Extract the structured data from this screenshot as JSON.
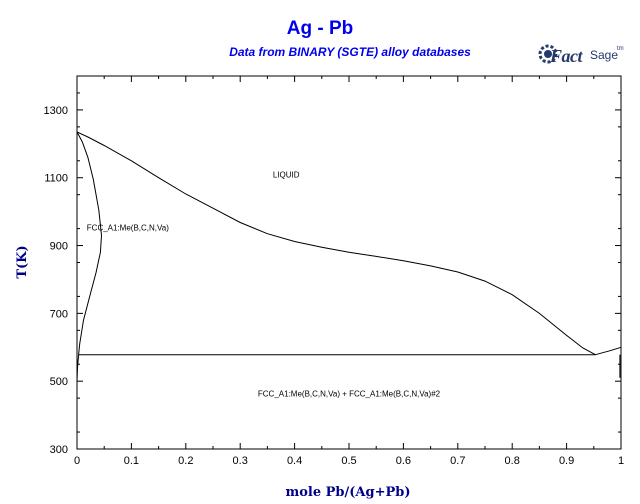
{
  "chart_data": {
    "type": "line",
    "title": "Ag - Pb",
    "subtitle": "Data from BINARY (SGTE) alloy databases",
    "xlabel": "mole Pb/(Ag+Pb)",
    "ylabel": "T(K)",
    "xlim": [
      0,
      1
    ],
    "ylim": [
      300,
      1400
    ],
    "xticks": [
      "0",
      "0.1",
      "0.2",
      "0.3",
      "0.4",
      "0.5",
      "0.6",
      "0.7",
      "0.8",
      "0.9",
      "1"
    ],
    "yticks": [
      "300",
      "500",
      "700",
      "900",
      "1100",
      "1300"
    ],
    "grid": false,
    "series": [
      {
        "x": [
          0.0,
          0.02,
          0.05,
          0.1,
          0.15,
          0.2,
          0.25,
          0.3,
          0.35,
          0.4,
          0.45,
          0.5,
          0.55,
          0.6,
          0.65,
          0.7,
          0.75,
          0.8,
          0.85,
          0.9,
          0.93,
          0.953
        ],
        "y": [
          1235,
          1220,
          1195,
          1150,
          1100,
          1052,
          1010,
          968,
          935,
          912,
          895,
          880,
          868,
          855,
          840,
          822,
          795,
          755,
          700,
          635,
          598,
          578
        ]
      },
      {
        "x": [
          0.0,
          0.01,
          0.02,
          0.03,
          0.04,
          0.045,
          0.043,
          0.035,
          0.025,
          0.012,
          0.005,
          0.003
        ],
        "y": [
          1235,
          1205,
          1160,
          1095,
          1005,
          930,
          880,
          820,
          760,
          680,
          610,
          578
        ]
      },
      {
        "x": [
          0.003,
          0.001,
          0.0
        ],
        "y": [
          578,
          540,
          500
        ]
      },
      {
        "x": [
          0.003,
          0.953
        ],
        "y": [
          578,
          578
        ]
      },
      {
        "x": [
          0.953,
          0.98,
          1.0
        ],
        "y": [
          578,
          590,
          600
        ]
      },
      {
        "x": [
          0.998,
          0.998
        ],
        "y": [
          578,
          510
        ]
      }
    ],
    "annotations": [
      {
        "text": "LIQUID",
        "x": 0.36,
        "y": 1100
      },
      {
        "text": "FCC_A1:Me(B,C,N,Va)",
        "x": 0.018,
        "y": 945
      },
      {
        "text": "FCC_A1:Me(B,C,N,Va) + FCC_A1:Me(B,C,N,Va)#2",
        "x": 0.5,
        "y": 455
      }
    ]
  },
  "logo": {
    "text_fact": "Fact",
    "text_sage": "Sage",
    "text_tm": "tm"
  }
}
